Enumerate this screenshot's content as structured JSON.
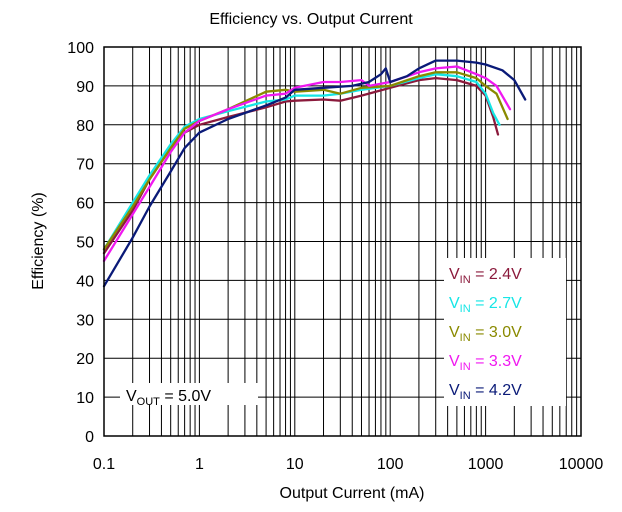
{
  "chart_data": {
    "type": "line",
    "title": "Efficiency vs. Output Current",
    "xlabel": "Output Current (mA)",
    "ylabel": "Efficiency (%)",
    "xscale": "log",
    "xlim": [
      0.1,
      10000
    ],
    "ylim": [
      0,
      100
    ],
    "grid": true,
    "xticks": [
      0.1,
      1,
      10,
      100,
      1000,
      10000
    ],
    "xtick_labels": [
      "0.1",
      "1",
      "10",
      "100",
      "1000",
      "10000"
    ],
    "yticks": [
      0,
      10,
      20,
      30,
      40,
      50,
      60,
      70,
      80,
      90,
      100
    ],
    "ytick_labels": [
      "0",
      "10",
      "20",
      "30",
      "40",
      "50",
      "60",
      "70",
      "80",
      "90",
      "100"
    ],
    "legend_position": "lower-right",
    "annotation": {
      "main": "V",
      "sub": "OUT",
      "rest": " = 5.0V",
      "position": "lower-left"
    },
    "series": [
      {
        "label_main": "V",
        "label_sub": "IN",
        "label_rest": " = 2.4V",
        "color": "#8b1a3c",
        "x": [
          0.1,
          0.2,
          0.3,
          0.5,
          0.7,
          1,
          2,
          5,
          8,
          10,
          20,
          30,
          50,
          100,
          200,
          300,
          500,
          800,
          1000,
          1200,
          1350
        ],
        "y": [
          47,
          58,
          66,
          74,
          78,
          80,
          82,
          84.5,
          86,
          86.2,
          86.5,
          86.2,
          87.5,
          89.5,
          91.5,
          92,
          91.5,
          90,
          87.5,
          82,
          77.5
        ]
      },
      {
        "label_main": "V",
        "label_sub": "IN",
        "label_rest": " = 2.7V",
        "color": "#16e6e6",
        "x": [
          0.1,
          0.2,
          0.3,
          0.5,
          0.7,
          1,
          2,
          5,
          8,
          10,
          20,
          30,
          50,
          100,
          200,
          300,
          500,
          800,
          1000,
          1200,
          1400
        ],
        "y": [
          48,
          60,
          67,
          75,
          79.5,
          81.5,
          83.5,
          86,
          86.5,
          87.5,
          87.5,
          88,
          89,
          90,
          92,
          93,
          92.5,
          91,
          88,
          83,
          80
        ]
      },
      {
        "label_main": "V",
        "label_sub": "IN",
        "label_rest": " = 3.0V",
        "color": "#8a8a00",
        "x": [
          0.1,
          0.2,
          0.3,
          0.5,
          0.7,
          1,
          2,
          5,
          8,
          10,
          20,
          30,
          50,
          100,
          200,
          300,
          500,
          800,
          1000,
          1300,
          1700
        ],
        "y": [
          48,
          59,
          66,
          74,
          79,
          81,
          84,
          88.5,
          89,
          88.5,
          89,
          88,
          89.5,
          90,
          92.5,
          93.5,
          93.5,
          92,
          90,
          88,
          81.5
        ]
      },
      {
        "label_main": "V",
        "label_sub": "IN",
        "label_rest": " = 3.3V",
        "color": "#f018f0",
        "x": [
          0.1,
          0.2,
          0.3,
          0.5,
          0.7,
          1,
          2,
          5,
          8,
          10,
          20,
          30,
          50,
          60,
          100,
          200,
          300,
          500,
          800,
          1000,
          1300,
          1800
        ],
        "y": [
          45,
          57,
          64,
          73,
          78,
          81,
          84,
          87.5,
          88,
          89.5,
          91,
          91,
          91.5,
          90,
          91,
          93.5,
          94.5,
          95,
          93,
          92,
          90,
          84
        ]
      },
      {
        "label_main": "V",
        "label_sub": "IN",
        "label_rest": " = 4.2V",
        "color": "#0a1a78",
        "x": [
          0.1,
          0.2,
          0.3,
          0.5,
          0.7,
          1,
          2,
          5,
          8,
          10,
          20,
          40,
          60,
          80,
          90,
          100,
          150,
          200,
          300,
          500,
          800,
          1000,
          1500,
          2000,
          2600
        ],
        "y": [
          38.5,
          51,
          59,
          68,
          74,
          78,
          81.5,
          85,
          87,
          89,
          89.5,
          90,
          91,
          93,
          94.5,
          91,
          92.5,
          94.5,
          96.5,
          96.5,
          96,
          95.5,
          94,
          91.5,
          86.5
        ]
      }
    ]
  }
}
